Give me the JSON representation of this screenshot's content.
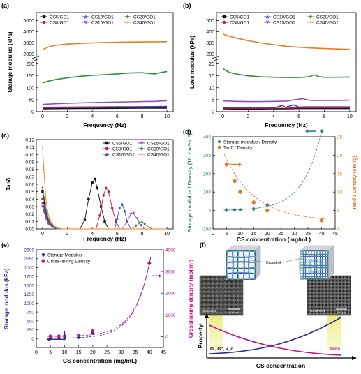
{
  "panels": {
    "a": {
      "letter": "(a)"
    },
    "b": {
      "letter": "(b)"
    },
    "c": {
      "letter": "(c)"
    },
    "d": {
      "letter": "(d)"
    },
    "e": {
      "letter": "(e)"
    },
    "f": {
      "letter": "(f)"
    }
  },
  "colors": {
    "CS5": "#111111",
    "CS8": "#c8104e",
    "CS10": "#3a46c8",
    "CS15": "#8a4ec8",
    "CS20": "#2e8b3a",
    "CS40": "#f07a1e",
    "teal": "#2e7d6e",
    "orange": "#e0772e",
    "navy": "#2b2f8f",
    "magenta": "#c0108a"
  },
  "chart_data": [
    {
      "panel": "a",
      "type": "line",
      "xlabel": "Frequency (Hz)",
      "ylabel": "Storage modulus (kPa)",
      "xlim": [
        -0.5,
        10.5
      ],
      "xticks": [
        "0",
        "2",
        "4",
        "6",
        "8",
        "10"
      ],
      "yticks_low": [
        "0",
        "50",
        "100",
        "150",
        "200"
      ],
      "yticks_high": [
        "2000",
        "3000",
        "4000",
        "5000"
      ],
      "axis_break": [
        250,
        1800
      ],
      "series": [
        {
          "name": "CS5/GO1",
          "key": "CS5",
          "marker": "square",
          "x": [
            0,
            1,
            2,
            3,
            4,
            5,
            6,
            7,
            8,
            9,
            10
          ],
          "y": [
            12,
            12.5,
            13,
            13.2,
            13.5,
            13.7,
            14,
            14.2,
            14.5,
            14.8,
            15
          ]
        },
        {
          "name": "CS8/GO1",
          "key": "CS8",
          "marker": "circle",
          "x": [
            0,
            1,
            2,
            3,
            4,
            5,
            6,
            7,
            8,
            9,
            10
          ],
          "y": [
            16,
            16.5,
            17,
            17.3,
            17.6,
            18,
            18.3,
            18.5,
            18.8,
            19,
            19.5
          ]
        },
        {
          "name": "CS10/GO1",
          "key": "CS10",
          "marker": "triangle",
          "x": [
            0,
            1,
            2,
            3,
            4,
            5,
            6,
            7,
            8,
            9,
            10
          ],
          "y": [
            18,
            18.5,
            19,
            19.3,
            19.6,
            20,
            20.2,
            20.5,
            20.7,
            21,
            21.5
          ]
        },
        {
          "name": "CS15/GO1",
          "key": "CS15",
          "marker": "triangle-down",
          "x": [
            0,
            1,
            2,
            3,
            4,
            5,
            6,
            7,
            8,
            9,
            10
          ],
          "y": [
            30,
            33,
            35,
            36.5,
            38,
            39,
            40,
            41,
            42,
            43,
            46
          ]
        },
        {
          "name": "CS20/GO1",
          "key": "CS20",
          "marker": "diamond",
          "x": [
            0,
            0.5,
            1,
            2,
            3,
            4,
            5,
            6,
            7,
            8,
            9,
            9.5,
            10
          ],
          "y": [
            120,
            128,
            134,
            142,
            148,
            152,
            155,
            158,
            162,
            163,
            158,
            164,
            168
          ]
        },
        {
          "name": "CS40/GO1",
          "key": "CS40",
          "marker": "star",
          "x": [
            0,
            0.5,
            1,
            2,
            3,
            4,
            5,
            6,
            7,
            8,
            9,
            10
          ],
          "y": [
            2400,
            2650,
            2780,
            2900,
            2960,
            3000,
            3040,
            3060,
            3080,
            3090,
            3100,
            3110
          ]
        }
      ]
    },
    {
      "panel": "b",
      "type": "line",
      "xlabel": "Frequency (Hz)",
      "ylabel": "Loss modulus (kPa)",
      "xlim": [
        -0.5,
        10.5
      ],
      "xticks": [
        "0",
        "2",
        "4",
        "6",
        "8",
        "10"
      ],
      "yticks_low": [
        "0",
        "5",
        "10",
        "15",
        "20"
      ],
      "yticks_high": [
        "200",
        "300",
        "400",
        "500"
      ],
      "axis_break": [
        23,
        170
      ],
      "series": [
        {
          "name": "CS5/GO1",
          "key": "CS5",
          "marker": "square",
          "x": [
            0,
            1,
            2,
            3,
            4,
            5,
            6,
            7,
            8,
            9,
            10
          ],
          "y": [
            1.2,
            1.1,
            1.1,
            1.1,
            1.2,
            1.2,
            1.3,
            1.3,
            1.3,
            1.3,
            1.3
          ]
        },
        {
          "name": "CS8/GO1",
          "key": "CS8",
          "marker": "circle",
          "x": [
            0,
            1,
            2,
            3,
            4,
            4.7,
            5,
            5.3,
            6,
            7,
            8,
            9,
            10
          ],
          "y": [
            1.5,
            1.4,
            1.4,
            1.4,
            1.5,
            2.6,
            1.5,
            1.5,
            1.6,
            1.6,
            1.6,
            1.6,
            1.7
          ]
        },
        {
          "name": "CS10/GO1",
          "key": "CS10",
          "marker": "triangle",
          "x": [
            0,
            1,
            2,
            3,
            4,
            5,
            5.6,
            6,
            6.4,
            7,
            8,
            9,
            10
          ],
          "y": [
            1.8,
            1.8,
            1.7,
            1.7,
            1.8,
            1.9,
            2.8,
            1.9,
            2,
            2,
            2,
            2,
            2
          ]
        },
        {
          "name": "CS15/GO1",
          "key": "CS15",
          "marker": "triangle-down",
          "x": [
            0,
            1,
            2,
            3,
            4,
            5,
            6,
            6.3,
            6.6,
            7,
            8,
            9,
            10
          ],
          "y": [
            4.5,
            4.3,
            4.2,
            4.2,
            4.3,
            4.4,
            5.2,
            5.4,
            5,
            4.7,
            4.7,
            4.7,
            4.8
          ]
        },
        {
          "name": "CS20/GO1",
          "key": "CS20",
          "marker": "diamond",
          "x": [
            0,
            0.5,
            1,
            2,
            3,
            4,
            5,
            6,
            6.8,
            7.2,
            7.6,
            8,
            9,
            10
          ],
          "y": [
            18,
            16.5,
            15.8,
            15,
            14.6,
            14.4,
            14.3,
            14.3,
            14.6,
            15.4,
            14.6,
            14.4,
            14.4,
            14.5
          ]
        },
        {
          "name": "CS40/GO1",
          "key": "CS40",
          "marker": "star",
          "x": [
            0,
            0.5,
            1,
            2,
            3,
            4,
            5,
            6,
            7,
            8,
            9,
            10
          ],
          "y": [
            380,
            360,
            345,
            320,
            300,
            285,
            270,
            262,
            255,
            250,
            246,
            243
          ]
        }
      ]
    },
    {
      "panel": "c",
      "type": "line",
      "xlabel": "Frequency (Hz)",
      "ylabel": "Tanδ",
      "xlim": [
        -0.5,
        10.5
      ],
      "ylim": [
        0,
        0.12
      ],
      "xticks": [
        "0",
        "2",
        "4",
        "6",
        "8",
        "10"
      ],
      "yticks": [
        "0.00",
        "0.01",
        "0.02",
        "0.03",
        "0.04",
        "0.05",
        "0.06",
        "0.07",
        "0.08",
        "0.09",
        "0.10",
        "0.11",
        "0.12"
      ],
      "series": [
        {
          "name": "CS5/GO1",
          "key": "CS5",
          "marker": "square",
          "x": [
            0,
            0.15,
            0.3,
            0.5,
            0.8,
            1.2,
            3,
            3.4,
            3.7,
            4,
            4.2,
            4.4,
            4.7,
            5,
            5.3
          ],
          "y": [
            0.05,
            0.035,
            0.02,
            0.01,
            0.004,
            0,
            0,
            0.012,
            0.04,
            0.062,
            0.067,
            0.055,
            0.03,
            0.01,
            0
          ]
        },
        {
          "name": "CS8/GO1",
          "key": "CS8",
          "marker": "circle",
          "x": [
            0,
            0.15,
            0.3,
            0.5,
            0.8,
            1.2,
            4.3,
            4.6,
            4.9,
            5.1,
            5.3,
            5.6,
            5.9,
            6.2
          ],
          "y": [
            0.04,
            0.03,
            0.018,
            0.009,
            0.003,
            0,
            0,
            0.018,
            0.045,
            0.055,
            0.05,
            0.028,
            0.01,
            0
          ]
        },
        {
          "name": "CS10/GO1",
          "key": "CS10",
          "marker": "triangle",
          "x": [
            0,
            0.15,
            0.3,
            0.5,
            0.8,
            1.2,
            5.8,
            6,
            6.2,
            6.4,
            6.6,
            6.8,
            7.1
          ],
          "y": [
            0.035,
            0.026,
            0.016,
            0.008,
            0.003,
            0,
            0,
            0.014,
            0.028,
            0.033,
            0.024,
            0.01,
            0
          ]
        },
        {
          "name": "CS15/GO1",
          "key": "CS15",
          "marker": "triangle-down",
          "x": [
            0,
            0.15,
            0.3,
            0.5,
            0.8,
            1.2,
            6.4,
            6.8,
            7.1,
            7.3,
            7.6,
            7.9,
            8.2
          ],
          "y": [
            0.03,
            0.022,
            0.013,
            0.006,
            0.002,
            0,
            0,
            0.01,
            0.02,
            0.021,
            0.014,
            0.005,
            0
          ]
        },
        {
          "name": "CS20/GO1",
          "key": "CS20",
          "marker": "diamond",
          "x": [
            0,
            0.15,
            0.3,
            0.5,
            0.8,
            1.2,
            7.2,
            7.5,
            7.8,
            8,
            8.2,
            8.5,
            8.8,
            10
          ],
          "y": [
            0.055,
            0.04,
            0.025,
            0.012,
            0.004,
            0,
            0,
            0.004,
            0.008,
            0.009,
            0.007,
            0.003,
            0,
            0
          ]
        },
        {
          "name": "CS40/GO1",
          "key": "CS40",
          "marker": "star",
          "x": [
            0,
            0.1,
            0.2,
            0.3,
            0.45,
            0.6,
            0.8,
            1,
            1.3,
            1.6,
            2,
            10
          ],
          "y": [
            0.11,
            0.08,
            0.055,
            0.035,
            0.02,
            0.012,
            0.006,
            0.003,
            0.001,
            0,
            0,
            0
          ]
        }
      ]
    },
    {
      "panel": "d",
      "type": "scatter",
      "xlabel": "CS concentration (mg/mL)",
      "ylabel_left": "Storage modulus / Density (10⁻⁵ m²·s⁻²)",
      "ylabel_right": "Tanδ / Density (cm³/g)",
      "xlim": [
        0,
        45
      ],
      "ylim_left": [
        -100,
        400
      ],
      "ylim_right": [
        0,
        25
      ],
      "xticks": [
        "0",
        "5",
        "10",
        "15",
        "20",
        "25",
        "30",
        "35",
        "40",
        "45"
      ],
      "yticks_left": [
        "-100",
        "0",
        "100",
        "200",
        "300",
        "400"
      ],
      "yticks_right": [
        "0",
        "5",
        "10",
        "15",
        "20",
        "25"
      ],
      "legend": [
        "Storage modulus / Density",
        "Tanδ / Density"
      ],
      "series": [
        {
          "name": "Storage modulus / Density",
          "axis": "left",
          "x": [
            5,
            8,
            10,
            15,
            20,
            40
          ],
          "y": [
            2,
            3,
            4,
            8,
            30,
            430
          ]
        },
        {
          "name": "Tanδ / Density",
          "axis": "right",
          "x": [
            5,
            8,
            10,
            15,
            20,
            40
          ],
          "y": [
            17.5,
            13,
            10,
            7.2,
            5,
            2.3
          ]
        }
      ]
    },
    {
      "panel": "e",
      "type": "scatter",
      "xlabel": "CS concentration (mg/mL)",
      "ylabel_left": "Storage modulus (kPa)",
      "ylabel_right": "Crosslinking density (mol/m³)",
      "xlim": [
        0,
        45
      ],
      "ylim_left": [
        -250,
        2500
      ],
      "ylim_right": [
        -500,
        4000
      ],
      "xticks": [
        "0",
        "5",
        "10",
        "15",
        "20",
        "25",
        "30",
        "35",
        "40",
        "45"
      ],
      "yticks_left": [
        "0",
        "250",
        "500",
        "750",
        "1000",
        "1250",
        "1500",
        "1750",
        "2000",
        "2250",
        "2500"
      ],
      "yticks_right": [
        "0",
        "1000",
        "2000",
        "3000",
        "4000"
      ],
      "legend": [
        "Storage Modulus",
        "Cross-linking Density"
      ],
      "series": [
        {
          "name": "Storage Modulus",
          "axis": "left",
          "x": [
            5,
            8,
            10,
            15,
            20,
            40
          ],
          "y": [
            12,
            15,
            18,
            40,
            160,
            2120
          ]
        },
        {
          "name": "Cross-linking Density",
          "axis": "right",
          "x": [
            5,
            8,
            10,
            15,
            20,
            40
          ],
          "y": [
            20,
            25,
            30,
            65,
            260,
            3380
          ]
        }
      ]
    }
  ],
  "schematic": {
    "crosslink_label": "Crosslink",
    "sem_left_label": "CS5/GO1",
    "sem_right_label": "CS40/GO1",
    "scale_left": "100 μm",
    "scale_right": "100 μm",
    "y_axis": "Property",
    "x_axis": "CS concentration",
    "label_left": "G', G'', ν_c",
    "label_right": "Tanδ"
  }
}
